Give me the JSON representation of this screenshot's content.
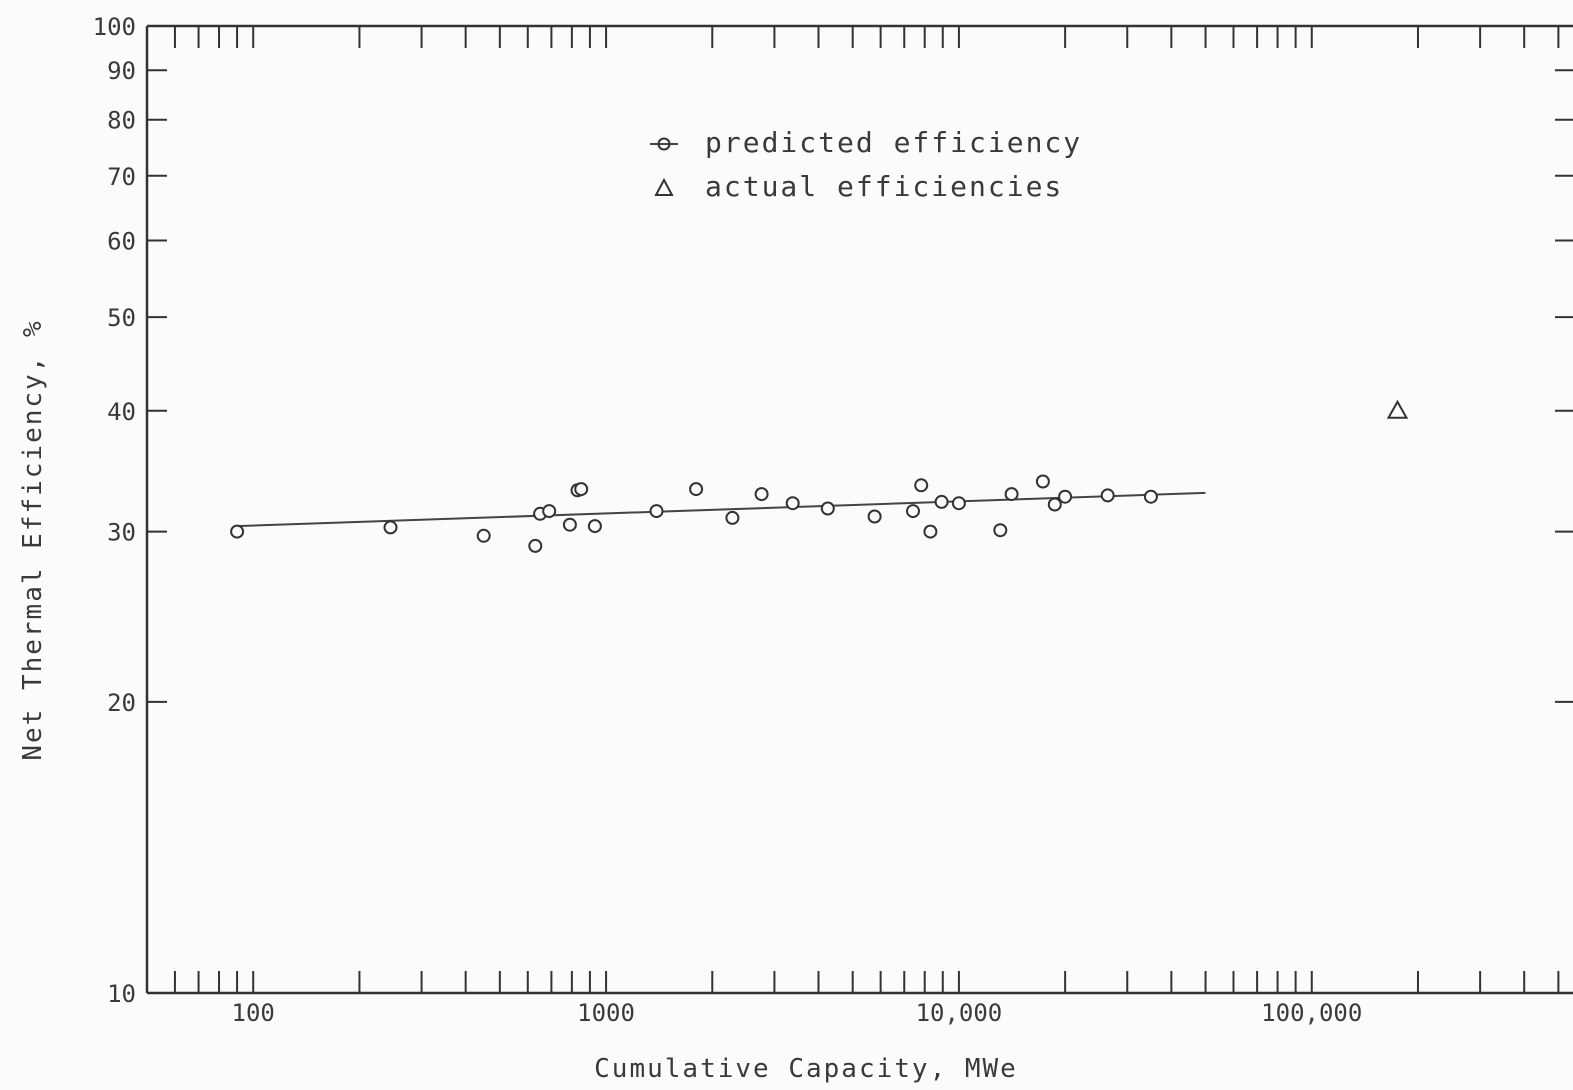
{
  "chart_data": {
    "type": "scatter",
    "xlabel": "Cumulative Capacity, MWe",
    "ylabel": "Net Thermal Efficiency, %",
    "x_scale": "log",
    "y_scale": "log",
    "xlim": [
      50,
      550000
    ],
    "ylim": [
      10,
      100
    ],
    "x_tick_labels": [
      {
        "value": 100,
        "label": "100"
      },
      {
        "value": 1000,
        "label": "1000"
      },
      {
        "value": 10000,
        "label": "10,000"
      },
      {
        "value": 100000,
        "label": "100,000"
      }
    ],
    "y_tick_labels": [
      {
        "value": 10,
        "label": "10"
      },
      {
        "value": 20,
        "label": "20"
      },
      {
        "value": 30,
        "label": "30"
      },
      {
        "value": 40,
        "label": "40"
      },
      {
        "value": 50,
        "label": "50"
      },
      {
        "value": 60,
        "label": "60"
      },
      {
        "value": 70,
        "label": "70"
      },
      {
        "value": 80,
        "label": "80"
      },
      {
        "value": 90,
        "label": "90"
      },
      {
        "value": 100,
        "label": "100"
      }
    ],
    "grid": false,
    "legend": {
      "position": "top-center",
      "entries": [
        {
          "label": "predicted efficiency",
          "marker": "circle-with-line"
        },
        {
          "label": "actual efficiencies",
          "marker": "triangle"
        }
      ]
    },
    "series": [
      {
        "name": "predicted efficiency",
        "marker": "circle",
        "points": [
          {
            "x": 90,
            "y": 30.0
          },
          {
            "x": 245,
            "y": 30.3
          },
          {
            "x": 450,
            "y": 29.7
          },
          {
            "x": 630,
            "y": 29.0
          },
          {
            "x": 650,
            "y": 31.3
          },
          {
            "x": 690,
            "y": 31.5
          },
          {
            "x": 790,
            "y": 30.5
          },
          {
            "x": 830,
            "y": 33.1
          },
          {
            "x": 850,
            "y": 33.2
          },
          {
            "x": 930,
            "y": 30.4
          },
          {
            "x": 1390,
            "y": 31.5
          },
          {
            "x": 1800,
            "y": 33.2
          },
          {
            "x": 2280,
            "y": 31.0
          },
          {
            "x": 2760,
            "y": 32.8
          },
          {
            "x": 3380,
            "y": 32.1
          },
          {
            "x": 4250,
            "y": 31.7
          },
          {
            "x": 5770,
            "y": 31.1
          },
          {
            "x": 7410,
            "y": 31.5
          },
          {
            "x": 7820,
            "y": 33.5
          },
          {
            "x": 8300,
            "y": 30.0
          },
          {
            "x": 8930,
            "y": 32.2
          },
          {
            "x": 10000,
            "y": 32.1
          },
          {
            "x": 13100,
            "y": 30.1
          },
          {
            "x": 14100,
            "y": 32.8
          },
          {
            "x": 17300,
            "y": 33.8
          },
          {
            "x": 18700,
            "y": 32.0
          },
          {
            "x": 20000,
            "y": 32.6
          },
          {
            "x": 26400,
            "y": 32.7
          },
          {
            "x": 35000,
            "y": 32.6
          }
        ]
      },
      {
        "name": "trend line",
        "type": "line",
        "points": [
          {
            "x": 90,
            "y": 30.4
          },
          {
            "x": 50000,
            "y": 32.9
          }
        ]
      },
      {
        "name": "actual efficiencies",
        "marker": "triangle",
        "points": [
          {
            "x": 175000,
            "y": 40.0
          }
        ]
      }
    ]
  }
}
